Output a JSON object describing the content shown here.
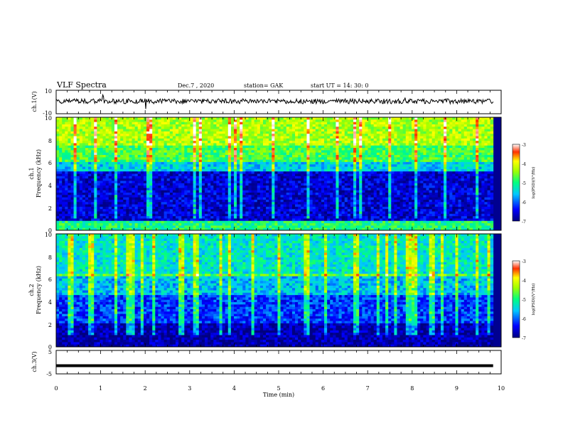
{
  "header": {
    "title": "VLF Spectra",
    "date": "Dec.7 , 2020",
    "station": "station= GAK",
    "start": "start  UT =   14: 30: 0"
  },
  "xaxis": {
    "label": "Time  (min)",
    "ticks": [
      "0",
      "1",
      "2",
      "3",
      "4",
      "5",
      "6",
      "7",
      "8",
      "9",
      "10"
    ],
    "range": [
      0,
      10
    ]
  },
  "panels": {
    "ch1_wave": {
      "label": "ch.1(V)",
      "ticks": [
        "10",
        "-10"
      ],
      "range": [
        -10,
        10
      ]
    },
    "ch1_spec": {
      "label": "ch.1",
      "ylabel": "Frequency (kHz)",
      "ticks": [
        "0",
        "2",
        "4",
        "6",
        "8",
        "10"
      ],
      "range": [
        0,
        10
      ]
    },
    "ch2_spec": {
      "label": "ch.2",
      "ylabel": "Frequency (kHz)",
      "ticks": [
        "0",
        "2",
        "4",
        "6",
        "8",
        "10"
      ],
      "range": [
        0,
        10
      ]
    },
    "ch3_wave": {
      "label": "ch.3(V)",
      "ticks": [
        "5",
        "-5"
      ],
      "range": [
        -5,
        5
      ]
    }
  },
  "colorbar": {
    "label": "log(PSD)(V²/Hz)",
    "ticks": [
      "-3",
      "-4",
      "-5",
      "-6",
      "-7"
    ],
    "range": [
      -7,
      -3
    ]
  },
  "chart_data": [
    {
      "type": "line",
      "title": "ch.1(V)",
      "xlabel": "Time (min)",
      "ylim": [
        -10,
        10
      ],
      "xlim": [
        0,
        10
      ],
      "description_values": {
        "baseline_v": 0,
        "typical_amplitude_v": 3,
        "spikes_at_min": [
          1.05,
          2.0,
          7.85
        ]
      }
    },
    {
      "type": "heatmap",
      "title": "ch.1",
      "xlim": [
        0,
        10
      ],
      "ylim": [
        0,
        10
      ],
      "ylabel": "Frequency (kHz)",
      "zlim": [
        -7,
        -3
      ],
      "bands_khz": [
        {
          "from": 0,
          "to": 0.8,
          "log_psd": -5.0
        },
        {
          "from": 0.8,
          "to": 5.3,
          "log_psd": -6.6
        },
        {
          "from": 5.3,
          "to": 6.0,
          "log_psd": -5.5
        },
        {
          "from": 6.0,
          "to": 7.5,
          "log_psd": -4.8
        },
        {
          "from": 7.5,
          "to": 10,
          "log_psd": -4.3
        }
      ]
    },
    {
      "type": "heatmap",
      "title": "ch.2",
      "xlim": [
        0,
        10
      ],
      "ylim": [
        0,
        10
      ],
      "ylabel": "Frequency (kHz)",
      "zlim": [
        -7,
        -3
      ],
      "bands_khz": [
        {
          "from": 0,
          "to": 2.0,
          "log_psd": -6.8
        },
        {
          "from": 2.0,
          "to": 4.5,
          "log_psd": -6.2
        },
        {
          "from": 4.5,
          "to": 6.2,
          "log_psd": -5.6
        },
        {
          "from": 6.2,
          "to": 6.5,
          "log_psd": -4.7
        },
        {
          "from": 6.5,
          "to": 10,
          "log_psd": -5.3
        }
      ]
    },
    {
      "type": "line",
      "title": "ch.3(V)",
      "xlabel": "Time (min)",
      "ylim": [
        -5,
        5
      ],
      "xlim": [
        0,
        10
      ],
      "description_values": {
        "constant_v": -1.5
      }
    }
  ]
}
